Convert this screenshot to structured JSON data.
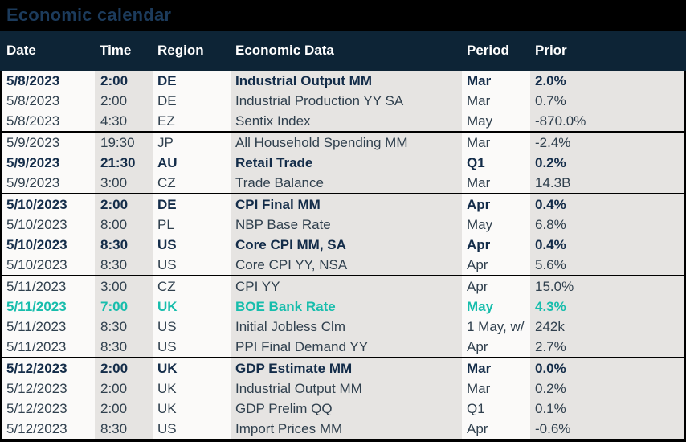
{
  "title": "Economic calendar",
  "colors": {
    "accent_teal": "#17BDAC",
    "header_bg": "#0D2436",
    "title_color": "#1C3B5C",
    "column_gray": "#E6E4E2",
    "column_white": "#FBFAF9"
  },
  "table": {
    "columns": [
      "Date",
      "Time",
      "Region",
      "Economic Data",
      "Period",
      "Prior"
    ],
    "groups": [
      {
        "rows": [
          {
            "date": "5/8/2023",
            "time": "2:00",
            "region": "DE",
            "data": "Industrial Output MM",
            "period": "Mar",
            "prior": "2.0%",
            "style": "bold"
          },
          {
            "date": "5/8/2023",
            "time": "2:00",
            "region": "DE",
            "data": "Industrial Production YY SA",
            "period": "Mar",
            "prior": "0.7%",
            "style": "normal"
          },
          {
            "date": "5/8/2023",
            "time": "4:30",
            "region": "EZ",
            "data": "Sentix Index",
            "period": "May",
            "prior": "-870.0%",
            "style": "normal"
          }
        ]
      },
      {
        "rows": [
          {
            "date": "5/9/2023",
            "time": "19:30",
            "region": "JP",
            "data": "All Household Spending MM",
            "period": "Mar",
            "prior": "-2.4%",
            "style": "normal"
          },
          {
            "date": "5/9/2023",
            "time": "21:30",
            "region": "AU",
            "data": "Retail Trade",
            "period": "Q1",
            "prior": "0.2%",
            "style": "bold"
          },
          {
            "date": "5/9/2023",
            "time": "3:00",
            "region": "CZ",
            "data": "Trade Balance",
            "period": "Mar",
            "prior": "14.3B",
            "style": "normal"
          }
        ]
      },
      {
        "rows": [
          {
            "date": "5/10/2023",
            "time": "2:00",
            "region": "DE",
            "data": "CPI Final MM",
            "period": "Apr",
            "prior": "0.4%",
            "style": "bold"
          },
          {
            "date": "5/10/2023",
            "time": "8:00",
            "region": "PL",
            "data": "NBP Base Rate",
            "period": "May",
            "prior": "6.8%",
            "style": "normal"
          },
          {
            "date": "5/10/2023",
            "time": "8:30",
            "region": "US",
            "data": "Core CPI MM, SA",
            "period": "Apr",
            "prior": "0.4%",
            "style": "bold"
          },
          {
            "date": "5/10/2023",
            "time": "8:30",
            "region": "US",
            "data": "Core CPI YY, NSA",
            "period": "Apr",
            "prior": "5.6%",
            "style": "normal"
          }
        ]
      },
      {
        "rows": [
          {
            "date": "5/11/2023",
            "time": "3:00",
            "region": "CZ",
            "data": "CPI YY",
            "period": "Apr",
            "prior": "15.0%",
            "style": "normal"
          },
          {
            "date": "5/11/2023",
            "time": "7:00",
            "region": "UK",
            "data": "BOE Bank Rate",
            "period": "May",
            "prior": "4.3%",
            "style": "highlight"
          },
          {
            "date": "5/11/2023",
            "time": "8:30",
            "region": "US",
            "data": "Initial Jobless Clm",
            "period": "1 May, w/",
            "prior": "242k",
            "style": "normal"
          },
          {
            "date": "5/11/2023",
            "time": "8:30",
            "region": "US",
            "data": "PPI Final Demand YY",
            "period": "Apr",
            "prior": "2.7%",
            "style": "normal"
          }
        ]
      },
      {
        "rows": [
          {
            "date": "5/12/2023",
            "time": "2:00",
            "region": "UK",
            "data": "GDP Estimate MM",
            "period": "Mar",
            "prior": "0.0%",
            "style": "bold"
          },
          {
            "date": "5/12/2023",
            "time": "2:00",
            "region": "UK",
            "data": "Industrial Output MM",
            "period": "Mar",
            "prior": "0.2%",
            "style": "normal"
          },
          {
            "date": "5/12/2023",
            "time": "2:00",
            "region": "UK",
            "data": "GDP Prelim QQ",
            "period": "Q1",
            "prior": "0.1%",
            "style": "normal"
          },
          {
            "date": "5/12/2023",
            "time": "8:30",
            "region": "US",
            "data": "Import Prices MM",
            "period": "Apr",
            "prior": "-0.6%",
            "style": "normal"
          }
        ]
      }
    ]
  }
}
